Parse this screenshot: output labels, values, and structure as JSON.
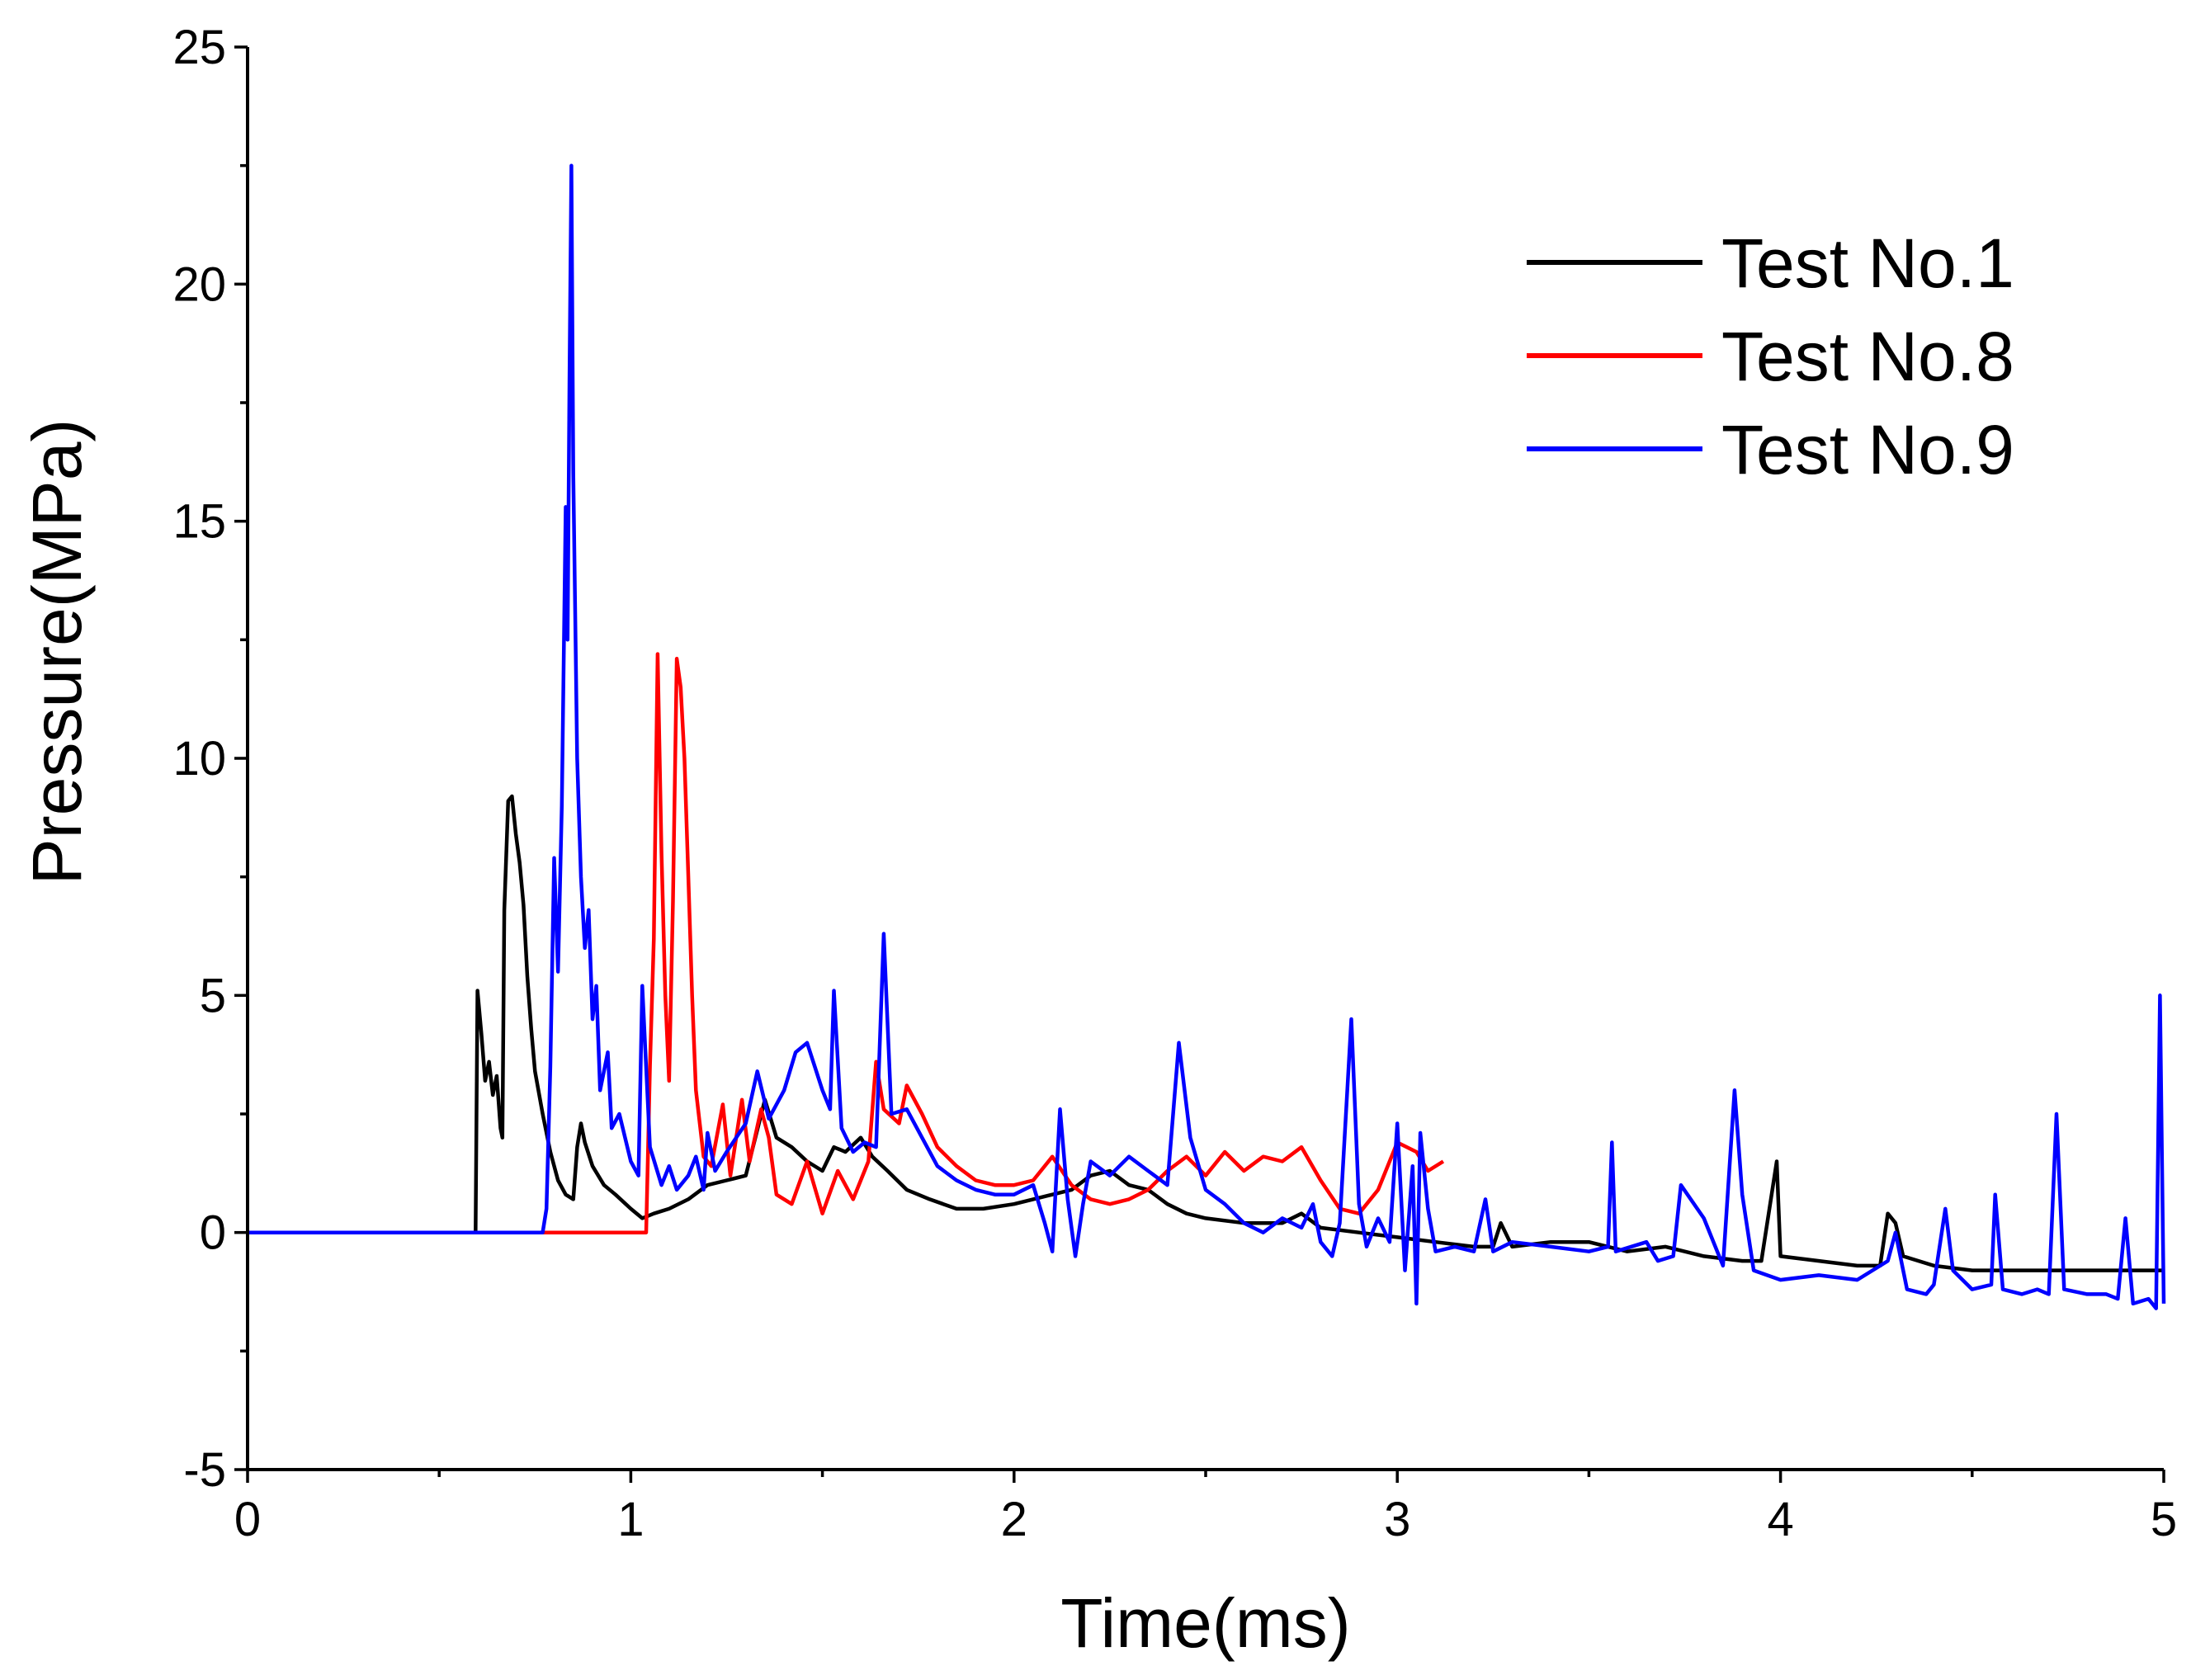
{
  "chart_data": {
    "type": "line",
    "title": "",
    "xlabel": "Time(ms)",
    "ylabel": "Pressure(MPa)",
    "xlim": [
      0,
      5
    ],
    "ylim": [
      -5,
      25
    ],
    "xticks": [
      0,
      1,
      2,
      3,
      4,
      5
    ],
    "xtick_labels": [
      "0",
      "1",
      "2",
      "3",
      "4",
      "5"
    ],
    "yticks": [
      -5,
      0,
      5,
      10,
      15,
      20,
      25
    ],
    "ytick_labels": [
      "-5",
      "0",
      "5",
      "10",
      "15",
      "20",
      "25"
    ],
    "grid": false,
    "legend_position": "top-right",
    "series": [
      {
        "name": "Test No.1",
        "color": "#000000",
        "points": [
          [
            0,
            0
          ],
          [
            0.59,
            0
          ],
          [
            0.595,
            0
          ],
          [
            0.6,
            5.1
          ],
          [
            0.61,
            4.2
          ],
          [
            0.62,
            3.2
          ],
          [
            0.63,
            3.6
          ],
          [
            0.64,
            2.9
          ],
          [
            0.65,
            3.3
          ],
          [
            0.66,
            2.2
          ],
          [
            0.665,
            2.0
          ],
          [
            0.67,
            6.8
          ],
          [
            0.68,
            9.1
          ],
          [
            0.69,
            9.2
          ],
          [
            0.7,
            8.4
          ],
          [
            0.71,
            7.8
          ],
          [
            0.72,
            6.9
          ],
          [
            0.73,
            5.4
          ],
          [
            0.74,
            4.3
          ],
          [
            0.75,
            3.4
          ],
          [
            0.77,
            2.5
          ],
          [
            0.79,
            1.7
          ],
          [
            0.81,
            1.1
          ],
          [
            0.83,
            0.8
          ],
          [
            0.85,
            0.7
          ],
          [
            0.86,
            1.8
          ],
          [
            0.87,
            2.3
          ],
          [
            0.88,
            1.9
          ],
          [
            0.9,
            1.4
          ],
          [
            0.93,
            1.0
          ],
          [
            0.96,
            0.8
          ],
          [
            1.0,
            0.5
          ],
          [
            1.03,
            0.3
          ],
          [
            1.06,
            0.4
          ],
          [
            1.1,
            0.5
          ],
          [
            1.15,
            0.7
          ],
          [
            1.2,
            1.0
          ],
          [
            1.25,
            1.1
          ],
          [
            1.3,
            1.2
          ],
          [
            1.35,
            2.8
          ],
          [
            1.38,
            2.0
          ],
          [
            1.42,
            1.8
          ],
          [
            1.46,
            1.5
          ],
          [
            1.5,
            1.3
          ],
          [
            1.53,
            1.8
          ],
          [
            1.56,
            1.7
          ],
          [
            1.6,
            2.0
          ],
          [
            1.63,
            1.6
          ],
          [
            1.67,
            1.3
          ],
          [
            1.72,
            0.9
          ],
          [
            1.78,
            0.7
          ],
          [
            1.85,
            0.5
          ],
          [
            1.92,
            0.5
          ],
          [
            2.0,
            0.6
          ],
          [
            2.05,
            0.7
          ],
          [
            2.1,
            0.8
          ],
          [
            2.15,
            0.9
          ],
          [
            2.2,
            1.2
          ],
          [
            2.25,
            1.3
          ],
          [
            2.3,
            1.0
          ],
          [
            2.35,
            0.9
          ],
          [
            2.4,
            0.6
          ],
          [
            2.45,
            0.4
          ],
          [
            2.5,
            0.3
          ],
          [
            2.6,
            0.2
          ],
          [
            2.7,
            0.2
          ],
          [
            2.75,
            0.4
          ],
          [
            2.8,
            0.1
          ],
          [
            2.9,
            0.0
          ],
          [
            3.0,
            -0.1
          ],
          [
            3.1,
            -0.2
          ],
          [
            3.2,
            -0.3
          ],
          [
            3.25,
            -0.3
          ],
          [
            3.27,
            0.2
          ],
          [
            3.3,
            -0.3
          ],
          [
            3.4,
            -0.2
          ],
          [
            3.5,
            -0.2
          ],
          [
            3.6,
            -0.4
          ],
          [
            3.7,
            -0.3
          ],
          [
            3.8,
            -0.5
          ],
          [
            3.9,
            -0.6
          ],
          [
            3.95,
            -0.6
          ],
          [
            3.99,
            1.5
          ],
          [
            4.0,
            -0.5
          ],
          [
            4.1,
            -0.6
          ],
          [
            4.2,
            -0.7
          ],
          [
            4.26,
            -0.7
          ],
          [
            4.28,
            0.4
          ],
          [
            4.3,
            0.2
          ],
          [
            4.32,
            -0.5
          ],
          [
            4.4,
            -0.7
          ],
          [
            4.5,
            -0.8
          ],
          [
            4.6,
            -0.8
          ],
          [
            4.7,
            -0.8
          ],
          [
            4.8,
            -0.8
          ],
          [
            4.9,
            -0.8
          ],
          [
            5.0,
            -0.8
          ]
        ]
      },
      {
        "name": "Test No.8",
        "color": "#ff0000",
        "points": [
          [
            0,
            0
          ],
          [
            0.8,
            0
          ],
          [
            1.0,
            0
          ],
          [
            1.04,
            0
          ],
          [
            1.05,
            3.5
          ],
          [
            1.06,
            6.2
          ],
          [
            1.07,
            12.2
          ],
          [
            1.08,
            8.0
          ],
          [
            1.09,
            5.0
          ],
          [
            1.1,
            3.2
          ],
          [
            1.11,
            7.0
          ],
          [
            1.12,
            12.1
          ],
          [
            1.13,
            11.5
          ],
          [
            1.14,
            10.0
          ],
          [
            1.15,
            7.5
          ],
          [
            1.16,
            5.0
          ],
          [
            1.17,
            3.0
          ],
          [
            1.19,
            1.6
          ],
          [
            1.21,
            1.4
          ],
          [
            1.24,
            2.7
          ],
          [
            1.26,
            1.2
          ],
          [
            1.29,
            2.8
          ],
          [
            1.31,
            1.5
          ],
          [
            1.34,
            2.6
          ],
          [
            1.36,
            2.0
          ],
          [
            1.38,
            0.8
          ],
          [
            1.42,
            0.6
          ],
          [
            1.46,
            1.5
          ],
          [
            1.5,
            0.4
          ],
          [
            1.54,
            1.3
          ],
          [
            1.58,
            0.7
          ],
          [
            1.62,
            1.5
          ],
          [
            1.64,
            3.6
          ],
          [
            1.66,
            2.6
          ],
          [
            1.7,
            2.3
          ],
          [
            1.72,
            3.1
          ],
          [
            1.76,
            2.5
          ],
          [
            1.8,
            1.8
          ],
          [
            1.85,
            1.4
          ],
          [
            1.9,
            1.1
          ],
          [
            1.95,
            1.0
          ],
          [
            2.0,
            1.0
          ],
          [
            2.05,
            1.1
          ],
          [
            2.1,
            1.6
          ],
          [
            2.15,
            1.0
          ],
          [
            2.2,
            0.7
          ],
          [
            2.25,
            0.6
          ],
          [
            2.3,
            0.7
          ],
          [
            2.35,
            0.9
          ],
          [
            2.4,
            1.3
          ],
          [
            2.45,
            1.6
          ],
          [
            2.5,
            1.2
          ],
          [
            2.55,
            1.7
          ],
          [
            2.6,
            1.3
          ],
          [
            2.65,
            1.6
          ],
          [
            2.7,
            1.5
          ],
          [
            2.75,
            1.8
          ],
          [
            2.8,
            1.1
          ],
          [
            2.85,
            0.5
          ],
          [
            2.9,
            0.4
          ],
          [
            2.95,
            0.9
          ],
          [
            3.0,
            1.9
          ],
          [
            3.05,
            1.7
          ],
          [
            3.08,
            1.3
          ],
          [
            3.12,
            1.5
          ]
        ]
      },
      {
        "name": "Test No.9",
        "color": "#0000ff",
        "points": [
          [
            0,
            0
          ],
          [
            0.7,
            0
          ],
          [
            0.77,
            0
          ],
          [
            0.78,
            0.5
          ],
          [
            0.79,
            3.5
          ],
          [
            0.8,
            7.9
          ],
          [
            0.81,
            5.5
          ],
          [
            0.82,
            9.0
          ],
          [
            0.83,
            15.3
          ],
          [
            0.835,
            12.5
          ],
          [
            0.84,
            18.0
          ],
          [
            0.845,
            22.5
          ],
          [
            0.85,
            16.0
          ],
          [
            0.86,
            10.0
          ],
          [
            0.87,
            7.5
          ],
          [
            0.88,
            6.0
          ],
          [
            0.89,
            6.8
          ],
          [
            0.9,
            4.5
          ],
          [
            0.91,
            5.2
          ],
          [
            0.92,
            3.0
          ],
          [
            0.94,
            3.8
          ],
          [
            0.95,
            2.2
          ],
          [
            0.97,
            2.5
          ],
          [
            1.0,
            1.5
          ],
          [
            1.02,
            1.2
          ],
          [
            1.03,
            5.2
          ],
          [
            1.05,
            1.8
          ],
          [
            1.08,
            1.0
          ],
          [
            1.1,
            1.4
          ],
          [
            1.12,
            0.9
          ],
          [
            1.15,
            1.2
          ],
          [
            1.17,
            1.6
          ],
          [
            1.19,
            0.9
          ],
          [
            1.2,
            2.1
          ],
          [
            1.22,
            1.3
          ],
          [
            1.25,
            1.7
          ],
          [
            1.3,
            2.3
          ],
          [
            1.33,
            3.4
          ],
          [
            1.36,
            2.4
          ],
          [
            1.4,
            3.0
          ],
          [
            1.43,
            3.8
          ],
          [
            1.46,
            4.0
          ],
          [
            1.48,
            3.5
          ],
          [
            1.5,
            3.0
          ],
          [
            1.52,
            2.6
          ],
          [
            1.53,
            5.1
          ],
          [
            1.55,
            2.2
          ],
          [
            1.58,
            1.7
          ],
          [
            1.61,
            1.9
          ],
          [
            1.64,
            1.8
          ],
          [
            1.66,
            6.3
          ],
          [
            1.68,
            2.5
          ],
          [
            1.72,
            2.6
          ],
          [
            1.76,
            2.0
          ],
          [
            1.8,
            1.4
          ],
          [
            1.85,
            1.1
          ],
          [
            1.9,
            0.9
          ],
          [
            1.95,
            0.8
          ],
          [
            2.0,
            0.8
          ],
          [
            2.05,
            1.0
          ],
          [
            2.08,
            0.2
          ],
          [
            2.1,
            -0.4
          ],
          [
            2.12,
            2.6
          ],
          [
            2.14,
            0.7
          ],
          [
            2.16,
            -0.5
          ],
          [
            2.18,
            0.6
          ],
          [
            2.2,
            1.5
          ],
          [
            2.25,
            1.2
          ],
          [
            2.3,
            1.6
          ],
          [
            2.35,
            1.3
          ],
          [
            2.4,
            1.0
          ],
          [
            2.43,
            4.0
          ],
          [
            2.46,
            2.0
          ],
          [
            2.5,
            0.9
          ],
          [
            2.55,
            0.6
          ],
          [
            2.6,
            0.2
          ],
          [
            2.65,
            0.0
          ],
          [
            2.7,
            0.3
          ],
          [
            2.75,
            0.1
          ],
          [
            2.78,
            0.6
          ],
          [
            2.8,
            -0.2
          ],
          [
            2.83,
            -0.5
          ],
          [
            2.85,
            0.2
          ],
          [
            2.88,
            4.5
          ],
          [
            2.9,
            0.6
          ],
          [
            2.92,
            -0.3
          ],
          [
            2.95,
            0.3
          ],
          [
            2.98,
            -0.2
          ],
          [
            3.0,
            2.3
          ],
          [
            3.02,
            -0.8
          ],
          [
            3.04,
            1.4
          ],
          [
            3.05,
            -1.5
          ],
          [
            3.06,
            2.1
          ],
          [
            3.08,
            0.5
          ],
          [
            3.1,
            -0.4
          ],
          [
            3.15,
            -0.3
          ],
          [
            3.2,
            -0.4
          ],
          [
            3.23,
            0.7
          ],
          [
            3.25,
            -0.4
          ],
          [
            3.3,
            -0.2
          ],
          [
            3.4,
            -0.3
          ],
          [
            3.5,
            -0.4
          ],
          [
            3.55,
            -0.3
          ],
          [
            3.56,
            1.9
          ],
          [
            3.57,
            -0.4
          ],
          [
            3.65,
            -0.2
          ],
          [
            3.68,
            -0.6
          ],
          [
            3.72,
            -0.5
          ],
          [
            3.74,
            1.0
          ],
          [
            3.8,
            0.3
          ],
          [
            3.85,
            -0.7
          ],
          [
            3.88,
            3.0
          ],
          [
            3.9,
            0.8
          ],
          [
            3.93,
            -0.8
          ],
          [
            4.0,
            -1.0
          ],
          [
            4.1,
            -0.9
          ],
          [
            4.2,
            -1.0
          ],
          [
            4.28,
            -0.6
          ],
          [
            4.3,
            0.0
          ],
          [
            4.33,
            -1.2
          ],
          [
            4.38,
            -1.3
          ],
          [
            4.4,
            -1.1
          ],
          [
            4.43,
            0.5
          ],
          [
            4.45,
            -0.8
          ],
          [
            4.5,
            -1.2
          ],
          [
            4.55,
            -1.1
          ],
          [
            4.56,
            0.8
          ],
          [
            4.58,
            -1.2
          ],
          [
            4.63,
            -1.3
          ],
          [
            4.67,
            -1.2
          ],
          [
            4.7,
            -1.3
          ],
          [
            4.72,
            2.5
          ],
          [
            4.74,
            -1.2
          ],
          [
            4.8,
            -1.3
          ],
          [
            4.85,
            -1.3
          ],
          [
            4.88,
            -1.4
          ],
          [
            4.9,
            0.3
          ],
          [
            4.92,
            -1.5
          ],
          [
            4.96,
            -1.4
          ],
          [
            4.98,
            -1.6
          ],
          [
            4.99,
            5.0
          ],
          [
            5.0,
            -1.5
          ]
        ]
      }
    ]
  }
}
